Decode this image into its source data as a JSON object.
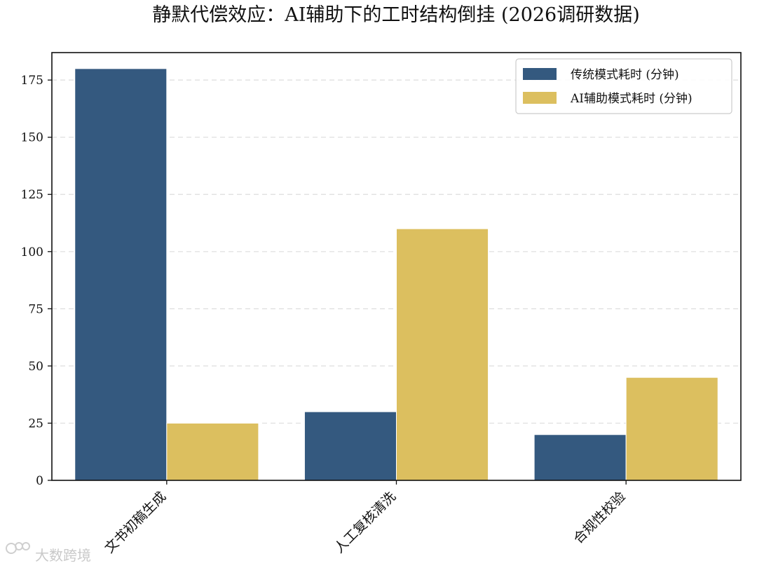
{
  "chart_data": {
    "type": "bar",
    "title": "静默代偿效应：AI辅助下的工时结构倒挂 (2026调研数据)",
    "xlabel": "",
    "ylabel": "",
    "categories": [
      "文书初稿生成",
      "人工复核清洗",
      "合规性校验"
    ],
    "series": [
      {
        "name": "传统模式耗时 (分钟)",
        "values": [
          180,
          30,
          20
        ],
        "color": "#34597f"
      },
      {
        "name": "AI辅助模式耗时 (分钟)",
        "values": [
          25,
          110,
          45
        ],
        "color": "#dcbf5f"
      }
    ],
    "ylim": [
      0,
      187
    ],
    "yticks": [
      0,
      25,
      50,
      75,
      100,
      125,
      150,
      175
    ],
    "grid": "y-dashed",
    "legend_position": "top-right"
  },
  "watermark": {
    "text": "大数跨境"
  }
}
